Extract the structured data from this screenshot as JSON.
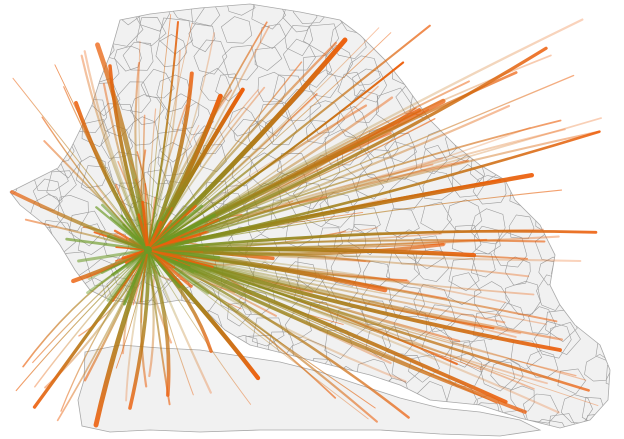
{
  "map": {
    "colors": {
      "land_fill": "#f1f1f1",
      "border": "#a9a9a9",
      "flow_origin_end": "#6b9a25",
      "flow_destination_end": "#ee5f0c",
      "background": "#ffffff"
    },
    "legend": "none",
    "labels": "none"
  }
}
